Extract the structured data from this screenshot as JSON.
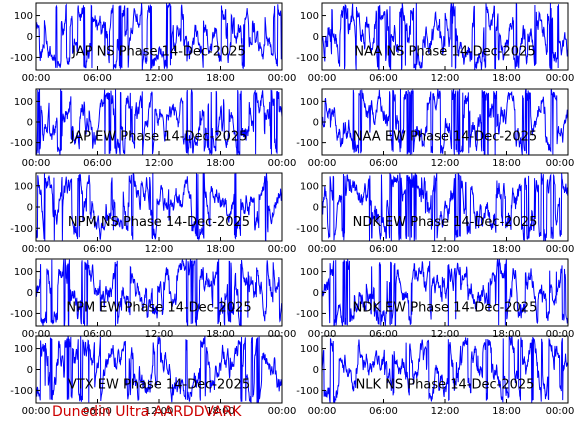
{
  "footer_text": "Dunedin Ultra AARDDVARK",
  "colors": {
    "trace": "#0000ff",
    "frame": "#000000",
    "footer": "#cc0000"
  },
  "chart_data": [
    {
      "type": "line",
      "title": "JAP NS  Phase  14-Dec-2025",
      "x_ticks": [
        "00:00",
        "06:00",
        "12:00",
        "18:00",
        "00:00"
      ],
      "y_ticks": [
        "100",
        "0",
        "-100"
      ],
      "xlim": [
        0,
        24
      ],
      "ylim": [
        -160,
        160
      ],
      "series": [
        {
          "amplitude": 150,
          "seed": 11
        }
      ]
    },
    {
      "type": "line",
      "title": "NAA NS  Phase  14-Dec-2025",
      "x_ticks": [
        "00:00",
        "06:00",
        "12:00",
        "18:00",
        "00:00"
      ],
      "y_ticks": [
        "100",
        "0",
        "-100"
      ],
      "xlim": [
        0,
        24
      ],
      "ylim": [
        -160,
        160
      ],
      "series": [
        {
          "amplitude": 150,
          "seed": 23
        }
      ]
    },
    {
      "type": "line",
      "title": "JAP EW  Phase  14-Dec-2025",
      "x_ticks": [
        "00:00",
        "06:00",
        "12:00",
        "18:00",
        "00:00"
      ],
      "y_ticks": [
        "100",
        "0",
        "-100"
      ],
      "xlim": [
        0,
        24
      ],
      "ylim": [
        -160,
        160
      ],
      "series": [
        {
          "amplitude": 150,
          "seed": 37
        }
      ]
    },
    {
      "type": "line",
      "title": "NAA EW  Phase  14-Dec-2025",
      "x_ticks": [
        "00:00",
        "06:00",
        "12:00",
        "18:00",
        "00:00"
      ],
      "y_ticks": [
        "100",
        "0",
        "-100"
      ],
      "xlim": [
        0,
        24
      ],
      "ylim": [
        -160,
        160
      ],
      "series": [
        {
          "amplitude": 150,
          "seed": 41
        }
      ]
    },
    {
      "type": "line",
      "title": "NPM NS  Phase  14-Dec-2025",
      "x_ticks": [
        "00:00",
        "06:00",
        "12:00",
        "18:00",
        "00:00"
      ],
      "y_ticks": [
        "100",
        "0",
        "-100"
      ],
      "xlim": [
        0,
        24
      ],
      "ylim": [
        -160,
        160
      ],
      "series": [
        {
          "amplitude": 150,
          "seed": 53
        }
      ]
    },
    {
      "type": "line",
      "title": "NDK EW  Phase  14-Dec-2025",
      "x_ticks": [
        "00:00",
        "06:00",
        "12:00",
        "18:00",
        "00:00"
      ],
      "y_ticks": [
        "100",
        "0",
        "-100"
      ],
      "xlim": [
        0,
        24
      ],
      "ylim": [
        -160,
        160
      ],
      "series": [
        {
          "amplitude": 150,
          "seed": 67
        }
      ]
    },
    {
      "type": "line",
      "title": "NPM EW  Phase  14-Dec-2025",
      "x_ticks": [
        "00:00",
        "06:00",
        "12:00",
        "18:00",
        "00:00"
      ],
      "y_ticks": [
        "100",
        "0",
        "-100"
      ],
      "xlim": [
        0,
        24
      ],
      "ylim": [
        -160,
        160
      ],
      "series": [
        {
          "amplitude": 150,
          "seed": 71
        }
      ]
    },
    {
      "type": "line",
      "title": "NDK EW  Phase  14-Dec-2025",
      "x_ticks": [
        "00:00",
        "06:00",
        "12:00",
        "18:00",
        "00:00"
      ],
      "y_ticks": [
        "100",
        "0",
        "-100"
      ],
      "xlim": [
        0,
        24
      ],
      "ylim": [
        -160,
        160
      ],
      "series": [
        {
          "amplitude": 150,
          "seed": 83
        }
      ]
    },
    {
      "type": "line",
      "title": "VTX EW  Phase  14-Dec-2025",
      "x_ticks": [
        "00:00",
        "06:00",
        "12:00",
        "18:00",
        "00:00"
      ],
      "y_ticks": [
        "100",
        "0",
        "-100"
      ],
      "xlim": [
        0,
        24
      ],
      "ylim": [
        -160,
        160
      ],
      "series": [
        {
          "amplitude": 150,
          "seed": 97
        }
      ]
    },
    {
      "type": "line",
      "title": "NLK NS  Phase  14-Dec-2025",
      "x_ticks": [
        "00:00",
        "06:00",
        "12:00",
        "18:00",
        "00:00"
      ],
      "y_ticks": [
        "100",
        "0",
        "-100"
      ],
      "xlim": [
        0,
        24
      ],
      "ylim": [
        -160,
        160
      ],
      "series": [
        {
          "amplitude": 150,
          "seed": 101
        }
      ]
    }
  ]
}
